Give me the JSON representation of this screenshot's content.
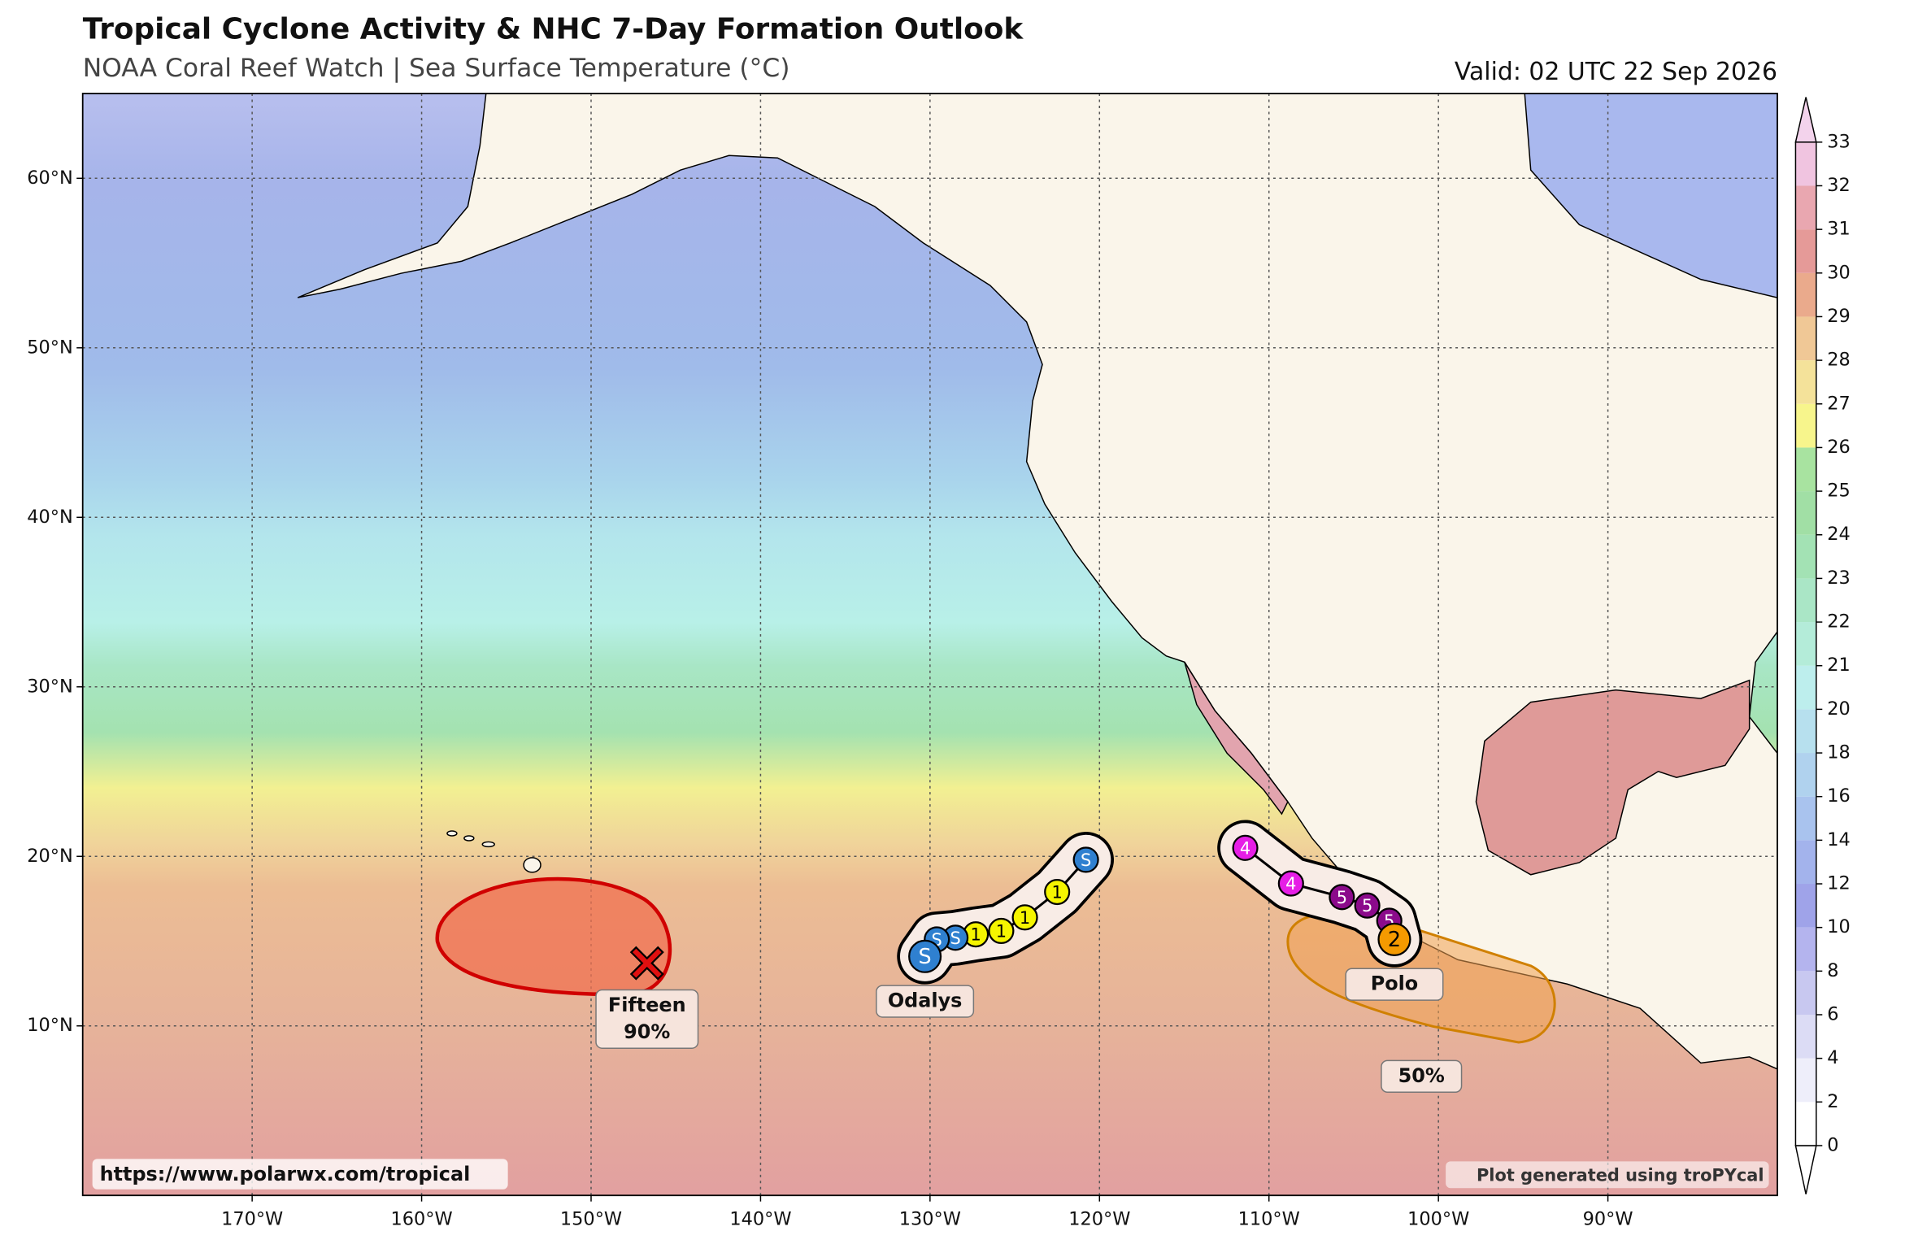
{
  "title": "Tropical Cyclone Activity & NHC 7-Day Formation Outlook",
  "subtitle": "NOAA Coral Reef Watch | Sea Surface Temperature (°C)",
  "valid": "Valid: 02 UTC 22 Sep 2026",
  "map": {
    "lonlim": [
      -180,
      -80
    ],
    "latlim": [
      0,
      65
    ],
    "lat_ticks": [
      {
        "value": 10,
        "label": "10°N"
      },
      {
        "value": 20,
        "label": "20°N"
      },
      {
        "value": 30,
        "label": "30°N"
      },
      {
        "value": 40,
        "label": "40°N"
      },
      {
        "value": 50,
        "label": "50°N"
      },
      {
        "value": 60,
        "label": "60°N"
      }
    ],
    "lon_ticks": [
      {
        "value": -170,
        "label": "170°W"
      },
      {
        "value": -160,
        "label": "160°W"
      },
      {
        "value": -150,
        "label": "150°W"
      },
      {
        "value": -140,
        "label": "140°W"
      },
      {
        "value": -130,
        "label": "130°W"
      },
      {
        "value": -120,
        "label": "120°W"
      },
      {
        "value": -110,
        "label": "110°W"
      },
      {
        "value": -100,
        "label": "100°W"
      },
      {
        "value": -90,
        "label": "90°W"
      }
    ]
  },
  "colorbar": {
    "ticks": [
      0,
      2,
      4,
      6,
      8,
      10,
      12,
      14,
      16,
      18,
      20,
      21,
      22,
      23,
      24,
      25,
      26,
      27,
      28,
      29,
      30,
      31,
      32,
      33
    ],
    "colors": [
      "#ffffff",
      "#eeeefa",
      "#dcdcf5",
      "#c8c8f0",
      "#b4b4ee",
      "#9fa3e9",
      "#a3b3ec",
      "#a9c3ee",
      "#b0d2ee",
      "#b7e0ee",
      "#bdeeed",
      "#b4ecd9",
      "#aae6c6",
      "#a3e2b4",
      "#a1dfa5",
      "#a8e3a0",
      "#f7f58c",
      "#f4e29a",
      "#f0c896",
      "#eaaa8c",
      "#e59a98",
      "#e9a7b0",
      "#f0c4e0"
    ]
  },
  "storms": [
    {
      "name": "Odalys",
      "track": [
        {
          "lon": -130.3,
          "lat": 14.1,
          "label": "S",
          "color": "#2f80d0"
        },
        {
          "lon": -129.6,
          "lat": 15.1,
          "label": "S",
          "color": "#2f80d0"
        },
        {
          "lon": -128.5,
          "lat": 15.2,
          "label": "S",
          "color": "#2f80d0"
        },
        {
          "lon": -127.3,
          "lat": 15.4,
          "label": "1",
          "color": "#f5f500"
        },
        {
          "lon": -125.8,
          "lat": 15.6,
          "label": "1",
          "color": "#f5f500"
        },
        {
          "lon": -124.4,
          "lat": 16.4,
          "label": "1",
          "color": "#f5f500"
        },
        {
          "lon": -122.5,
          "lat": 17.9,
          "label": "1",
          "color": "#f5f500"
        },
        {
          "lon": -120.8,
          "lat": 19.8,
          "label": "S",
          "color": "#2f80d0"
        }
      ]
    },
    {
      "name": "Polo",
      "track": [
        {
          "lon": -102.6,
          "lat": 15.1,
          "label": "2",
          "color": "#f59a00"
        },
        {
          "lon": -102.9,
          "lat": 16.2,
          "label": "5",
          "color": "#8b0a8b"
        },
        {
          "lon": -104.2,
          "lat": 17.1,
          "label": "5",
          "color": "#8b0a8b"
        },
        {
          "lon": -105.7,
          "lat": 17.6,
          "label": "5",
          "color": "#8b0a8b"
        },
        {
          "lon": -108.7,
          "lat": 18.4,
          "label": "4",
          "color": "#e61ee6"
        },
        {
          "lon": -111.4,
          "lat": 20.5,
          "label": "4",
          "color": "#e61ee6"
        }
      ]
    }
  ],
  "outlooks": [
    {
      "name": "Fifteen",
      "probability": "90%",
      "lon": -146.7,
      "lat": 13.7
    },
    {
      "probability": "50%"
    }
  ],
  "footer": {
    "url": "https://www.polarwx.com/tropical",
    "credit": "Plot generated using troPYcal"
  }
}
